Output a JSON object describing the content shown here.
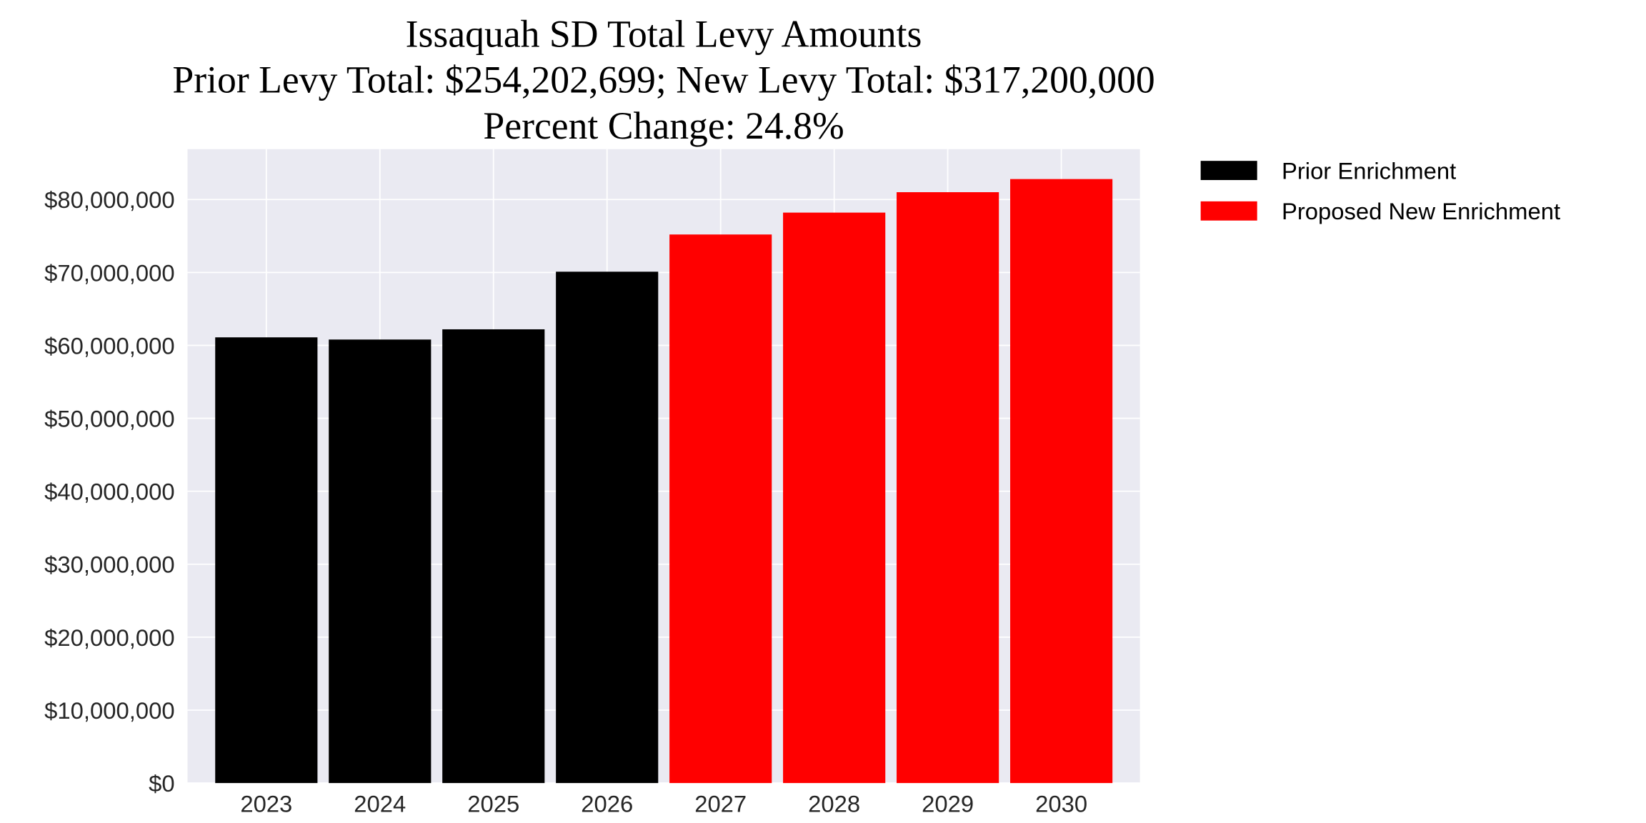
{
  "chart_data": {
    "type": "bar",
    "title_lines": [
      "Issaquah SD Total Levy Amounts",
      "Prior Levy Total:  $254,202,699; New Levy Total: $317,200,000",
      "Percent Change: 24.8%"
    ],
    "xlabel": "",
    "ylabel": "",
    "categories": [
      "2023",
      "2024",
      "2025",
      "2026",
      "2027",
      "2028",
      "2029",
      "2030"
    ],
    "series": [
      {
        "name": "Prior Enrichment",
        "color": "#000000",
        "values": [
          61100000,
          60800000,
          62200000,
          70100000,
          null,
          null,
          null,
          null
        ]
      },
      {
        "name": "Proposed New Enrichment",
        "color": "#FF0000",
        "values": [
          null,
          null,
          null,
          null,
          75200000,
          78200000,
          81000000,
          82800000
        ]
      }
    ],
    "ylim": [
      0,
      86900000
    ],
    "yticks": [
      0,
      10000000,
      20000000,
      30000000,
      40000000,
      50000000,
      60000000,
      70000000,
      80000000
    ],
    "ytick_labels": [
      "$0",
      "$10,000,000",
      "$20,000,000",
      "$30,000,000",
      "$40,000,000",
      "$50,000,000",
      "$60,000,000",
      "$70,000,000",
      "$80,000,000"
    ],
    "grid": true,
    "background": "#EAEAF2",
    "legend_placement": "outside-top-right"
  }
}
